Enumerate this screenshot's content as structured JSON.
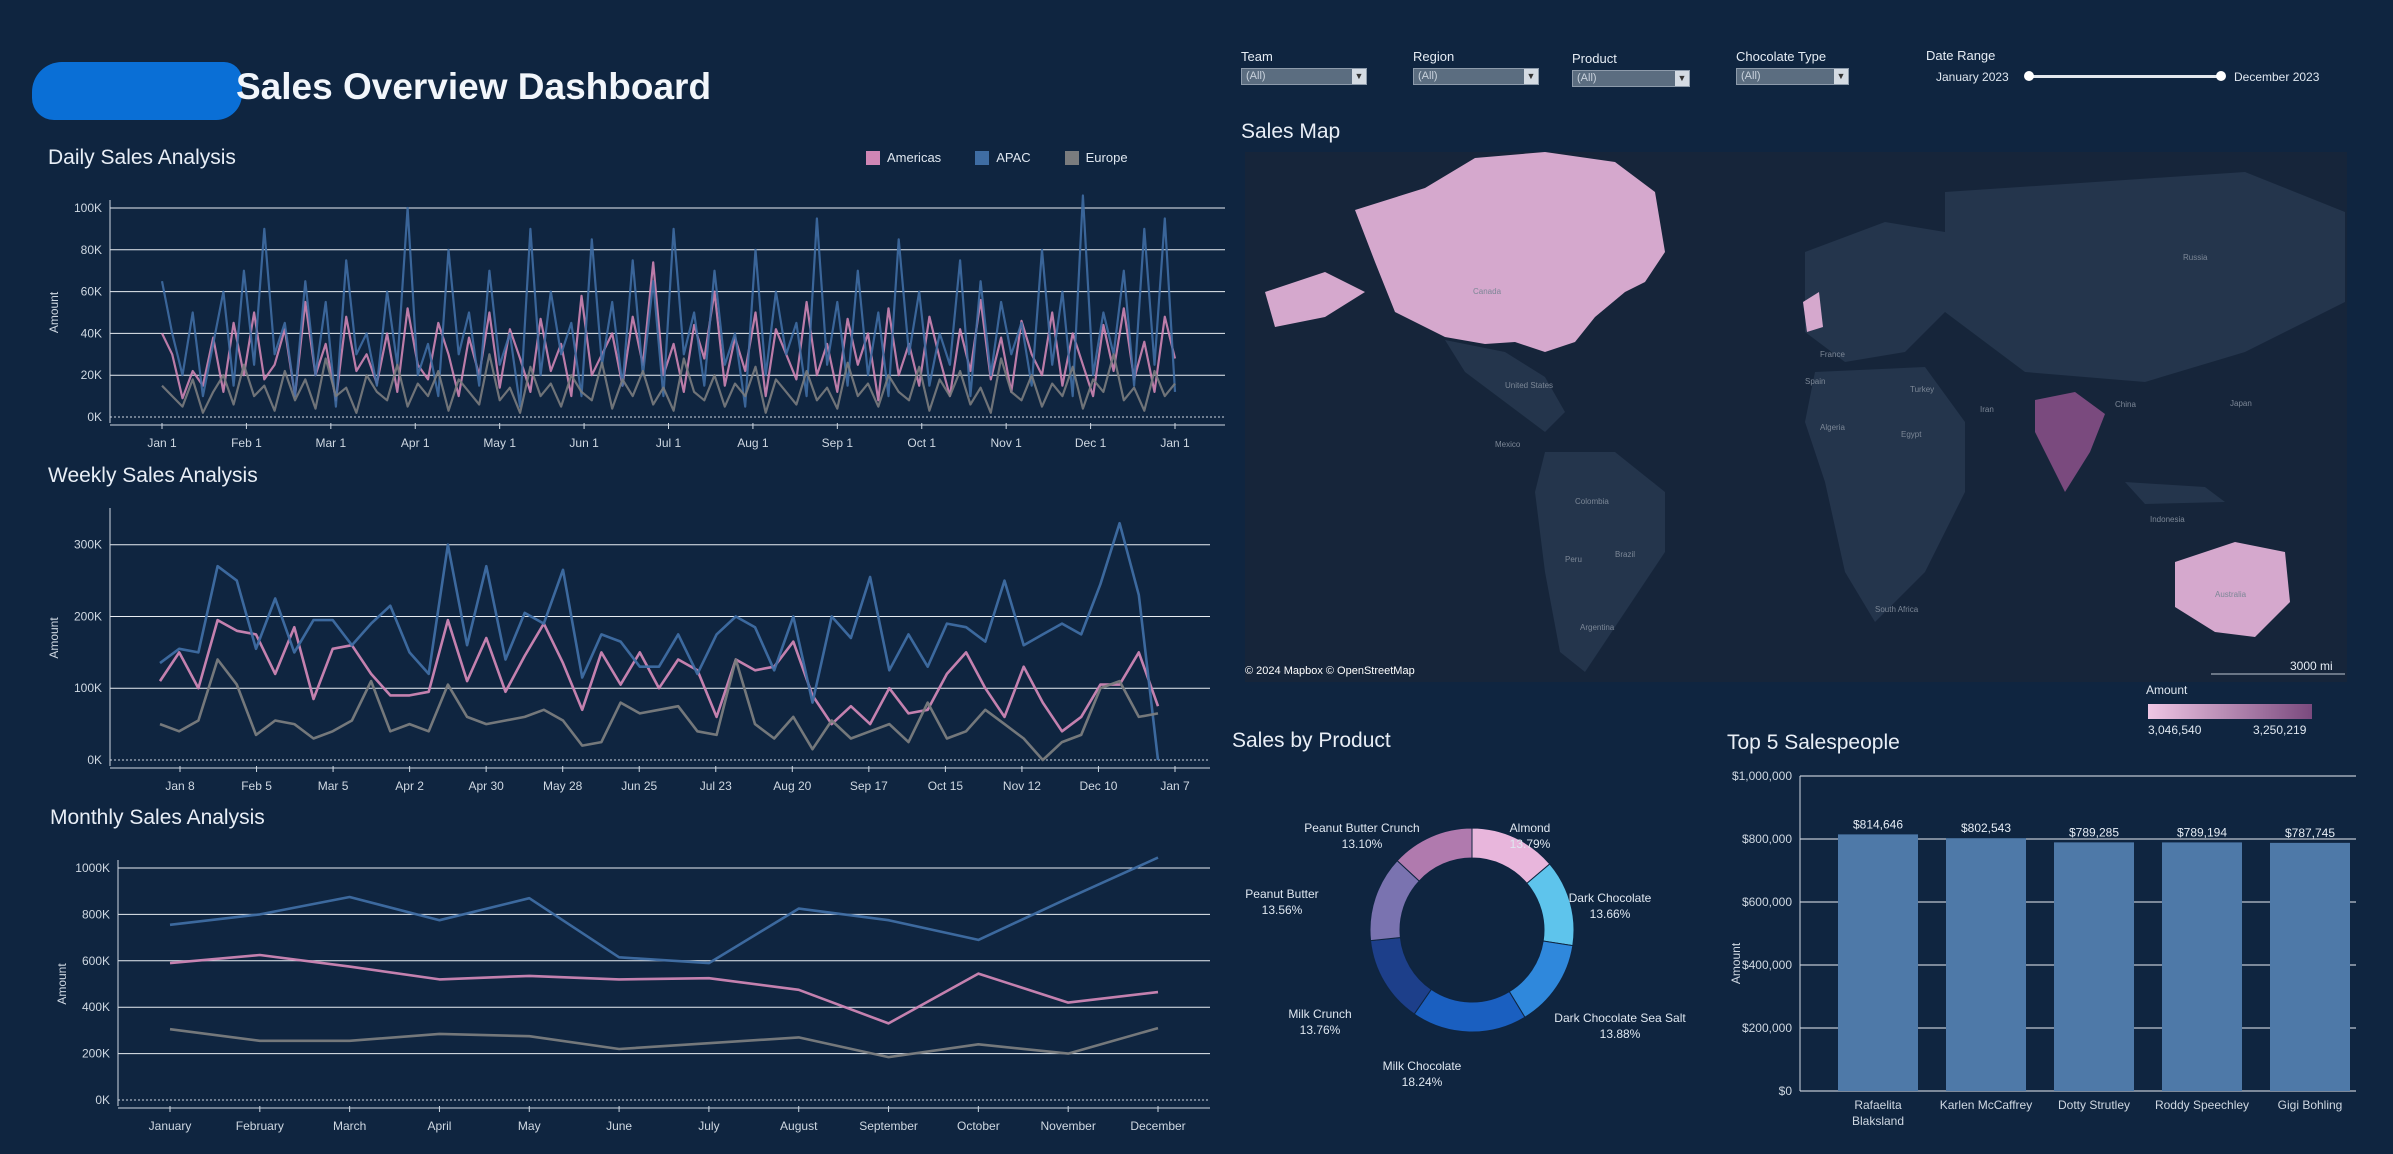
{
  "header": {
    "title": "Sales Overview Dashboard"
  },
  "colors": {
    "background": "#0f2540",
    "americas": "#cf86b5",
    "apac": "#3f6da3",
    "europe": "#7a7c7e",
    "grid": "#ffffff"
  },
  "legend": [
    {
      "label": "Americas",
      "color": "#cf86b5"
    },
    {
      "label": "APAC",
      "color": "#3f6da3"
    },
    {
      "label": "Europe",
      "color": "#7a7c7e"
    }
  ],
  "filters": {
    "team": {
      "label": "Team",
      "value": "(All)"
    },
    "region": {
      "label": "Region",
      "value": "(All)"
    },
    "product": {
      "label": "Product",
      "value": "(All)"
    },
    "chocolate_type": {
      "label": "Chocolate Type",
      "value": "(All)"
    },
    "date_range": {
      "label": "Date Range",
      "start": "January 2023",
      "end": "December 2023"
    }
  },
  "daily": {
    "title": "Daily Sales Analysis",
    "ylabel": "Amount",
    "yticks": [
      "100K",
      "80K",
      "60K",
      "40K",
      "20K",
      "0K"
    ],
    "xticks": [
      "Jan 1",
      "Feb 1",
      "Mar 1",
      "Apr 1",
      "May 1",
      "Jun 1",
      "Jul 1",
      "Aug 1",
      "Sep 1",
      "Oct 1",
      "Nov 1",
      "Dec 1",
      "Jan 1"
    ]
  },
  "weekly": {
    "title": "Weekly Sales Analysis",
    "ylabel": "Amount",
    "yticks": [
      "300K",
      "200K",
      "100K",
      "0K"
    ],
    "xticks": [
      "Jan 8",
      "Feb 5",
      "Mar 5",
      "Apr 2",
      "Apr 30",
      "May 28",
      "Jun 25",
      "Jul 23",
      "Aug 20",
      "Sep 17",
      "Oct 15",
      "Nov 12",
      "Dec 10",
      "Jan 7"
    ]
  },
  "monthly": {
    "title": "Monthly Sales Analysis",
    "ylabel": "Amount",
    "yticks": [
      "1000K",
      "800K",
      "600K",
      "400K",
      "200K",
      "0K"
    ],
    "xticks": [
      "January",
      "February",
      "March",
      "April",
      "May",
      "June",
      "July",
      "August",
      "September",
      "October",
      "November",
      "December"
    ]
  },
  "map": {
    "title": "Sales Map",
    "attribution": "© 2024 Mapbox © OpenStreetMap",
    "scale": "3000 mi",
    "legend_title": "Amount",
    "legend_min": "3,046,540",
    "legend_max": "3,250,219",
    "labels": [
      "Russia",
      "Canada",
      "United States",
      "Mexico",
      "Colombia",
      "Brazil",
      "Peru",
      "Argentina",
      "France",
      "Spain",
      "Algeria",
      "Turkey",
      "Egypt",
      "Iran",
      "China",
      "Japan",
      "Indonesia",
      "South Africa",
      "Australia"
    ]
  },
  "product": {
    "title": "Sales by Product",
    "labels": [
      {
        "name": "Almond",
        "pct": "13.79%"
      },
      {
        "name": "Dark Chocolate",
        "pct": "13.66%"
      },
      {
        "name": "Dark Chocolate Sea Salt",
        "pct": "13.88%"
      },
      {
        "name": "Milk Chocolate",
        "pct": "18.24%"
      },
      {
        "name": "Milk Crunch",
        "pct": "13.76%"
      },
      {
        "name": "Peanut Butter",
        "pct": "13.56%"
      },
      {
        "name": "Peanut Butter Crunch",
        "pct": "13.10%"
      }
    ]
  },
  "top5": {
    "title": "Top 5 Salespeople",
    "ylabel": "Amount",
    "yticks": [
      "$1,000,000",
      "$800,000",
      "$600,000",
      "$400,000",
      "$200,000",
      "$0"
    ],
    "names": [
      "Rafaelita Blaksland",
      "Karlen McCaffrey",
      "Dotty Strutley",
      "Roddy Speechley",
      "Gigi Bohling"
    ],
    "value_labels": [
      "$814,646",
      "$802,543",
      "$789,285",
      "$789,194",
      "$787,745"
    ]
  },
  "chart_data": [
    {
      "type": "line",
      "title": "Daily Sales Analysis",
      "ylabel": "Amount",
      "ylim": [
        0,
        100000
      ],
      "x_range": [
        "2023-01-01",
        "2023-12-31"
      ],
      "series": [
        {
          "name": "Americas",
          "values": [
            40000,
            30000,
            9000,
            22000,
            15000,
            38000,
            12000,
            45000,
            20000,
            50000,
            18000,
            25000,
            42000,
            10000,
            55000,
            20000,
            35000,
            8000,
            48000,
            22000,
            30000,
            16000,
            40000,
            12000,
            52000,
            25000,
            18000,
            45000,
            30000,
            10000,
            38000,
            20000,
            50000,
            14000,
            42000,
            28000,
            12000,
            47000,
            22000,
            35000,
            10000,
            58000,
            20000,
            30000,
            40000,
            15000,
            48000,
            25000,
            74000,
            20000,
            35000,
            12000,
            44000,
            28000,
            60000,
            15000,
            38000,
            22000,
            50000,
            10000,
            42000,
            30000,
            18000,
            55000,
            20000,
            35000,
            12000,
            47000,
            25000,
            40000,
            8000,
            52000,
            20000,
            35000,
            15000,
            48000,
            28000,
            10000,
            42000,
            22000,
            56000,
            18000,
            38000,
            12000,
            46000,
            30000,
            20000,
            50000,
            15000,
            40000,
            25000,
            10000,
            44000,
            22000,
            52000,
            18000,
            36000,
            12000,
            48000,
            28000
          ]
        },
        {
          "name": "APAC",
          "values": [
            65000,
            40000,
            20000,
            50000,
            10000,
            35000,
            60000,
            15000,
            70000,
            25000,
            90000,
            30000,
            45000,
            10000,
            65000,
            20000,
            55000,
            5000,
            75000,
            30000,
            40000,
            15000,
            60000,
            25000,
            100000,
            20000,
            35000,
            10000,
            80000,
            30000,
            50000,
            15000,
            70000,
            25000,
            40000,
            5000,
            90000,
            20000,
            60000,
            30000,
            45000,
            10000,
            85000,
            25000,
            55000,
            15000,
            75000,
            20000,
            65000,
            10000,
            90000,
            30000,
            50000,
            15000,
            70000,
            25000,
            40000,
            5000,
            80000,
            20000,
            60000,
            30000,
            45000,
            10000,
            95000,
            25000,
            55000,
            15000,
            70000,
            20000,
            50000,
            10000,
            85000,
            30000,
            60000,
            15000,
            40000,
            25000,
            75000,
            10000,
            65000,
            20000,
            55000,
            30000,
            45000,
            15000,
            80000,
            25000,
            60000,
            10000,
            106000,
            20000,
            50000,
            30000,
            70000,
            15000,
            90000,
            25000,
            95000,
            12000
          ]
        },
        {
          "name": "Europe",
          "values": [
            15000,
            10000,
            5000,
            18000,
            2000,
            12000,
            20000,
            6000,
            25000,
            10000,
            15000,
            3000,
            22000,
            8000,
            18000,
            4000,
            28000,
            10000,
            14000,
            2000,
            20000,
            12000,
            8000,
            25000,
            5000,
            16000,
            10000,
            22000,
            3000,
            18000,
            12000,
            6000,
            30000,
            8000,
            14000,
            2000,
            24000,
            10000,
            16000,
            5000,
            20000,
            12000,
            8000,
            26000,
            4000,
            18000,
            10000,
            22000,
            6000,
            14000,
            3000,
            28000,
            12000,
            8000,
            20000,
            5000,
            16000,
            10000,
            24000,
            2000,
            18000,
            12000,
            6000,
            22000,
            8000,
            14000,
            4000,
            26000,
            10000,
            16000,
            5000,
            20000,
            12000,
            8000,
            24000,
            3000,
            18000,
            10000,
            22000,
            6000,
            14000,
            2000,
            28000,
            12000,
            8000,
            20000,
            5000,
            16000,
            10000,
            24000,
            4000,
            18000,
            12000,
            30000,
            8000,
            14000,
            3000,
            22000,
            10000,
            16000
          ]
        }
      ]
    },
    {
      "type": "line",
      "title": "Weekly Sales Analysis",
      "ylabel": "Amount",
      "ylim": [
        0,
        340000
      ],
      "x_range": [
        "2023-01-01",
        "2024-01-07"
      ],
      "series": [
        {
          "name": "Americas",
          "values": [
            110000,
            150000,
            100000,
            195000,
            180000,
            175000,
            120000,
            185000,
            85000,
            155000,
            160000,
            120000,
            90000,
            90000,
            95000,
            195000,
            110000,
            170000,
            95000,
            145000,
            190000,
            135000,
            70000,
            150000,
            105000,
            150000,
            100000,
            140000,
            125000,
            60000,
            140000,
            125000,
            130000,
            165000,
            90000,
            50000,
            75000,
            50000,
            100000,
            65000,
            70000,
            120000,
            150000,
            100000,
            60000,
            130000,
            80000,
            40000,
            60000,
            105000,
            105000,
            150000,
            75000
          ]
        },
        {
          "name": "APAC",
          "values": [
            135000,
            155000,
            150000,
            270000,
            250000,
            155000,
            225000,
            150000,
            195000,
            195000,
            160000,
            190000,
            215000,
            150000,
            120000,
            300000,
            160000,
            270000,
            140000,
            205000,
            190000,
            265000,
            115000,
            175000,
            165000,
            130000,
            130000,
            175000,
            120000,
            175000,
            200000,
            185000,
            125000,
            200000,
            80000,
            200000,
            170000,
            255000,
            125000,
            175000,
            130000,
            190000,
            185000,
            165000,
            250000,
            160000,
            175000,
            190000,
            175000,
            245000,
            330000,
            230000,
            0
          ]
        },
        {
          "name": "Europe",
          "values": [
            50000,
            40000,
            55000,
            140000,
            105000,
            35000,
            55000,
            50000,
            30000,
            40000,
            55000,
            110000,
            40000,
            50000,
            40000,
            105000,
            60000,
            50000,
            55000,
            60000,
            70000,
            55000,
            20000,
            25000,
            80000,
            65000,
            70000,
            75000,
            40000,
            35000,
            140000,
            50000,
            30000,
            60000,
            15000,
            55000,
            30000,
            40000,
            50000,
            25000,
            80000,
            30000,
            40000,
            70000,
            50000,
            30000,
            0,
            25000,
            35000,
            100000,
            110000,
            60000,
            65000
          ]
        }
      ]
    },
    {
      "type": "line",
      "title": "Monthly Sales Analysis",
      "ylabel": "Amount",
      "categories": [
        "January",
        "February",
        "March",
        "April",
        "May",
        "June",
        "July",
        "August",
        "September",
        "October",
        "November",
        "December"
      ],
      "ylim": [
        0,
        1000000
      ],
      "series": [
        {
          "name": "Americas",
          "values": [
            590000,
            625000,
            575000,
            520000,
            535000,
            520000,
            525000,
            475000,
            330000,
            545000,
            420000,
            465000
          ]
        },
        {
          "name": "APAC",
          "values": [
            755000,
            800000,
            875000,
            775000,
            870000,
            615000,
            590000,
            825000,
            775000,
            690000,
            870000,
            1045000
          ]
        },
        {
          "name": "Europe",
          "values": [
            305000,
            255000,
            255000,
            285000,
            275000,
            220000,
            245000,
            270000,
            185000,
            240000,
            200000,
            310000
          ]
        }
      ]
    },
    {
      "type": "pie",
      "title": "Sales by Product",
      "categories": [
        "Almond",
        "Dark Chocolate",
        "Dark Chocolate Sea Salt",
        "Milk Chocolate",
        "Milk Crunch",
        "Peanut Butter",
        "Peanut Butter Crunch"
      ],
      "values": [
        13.79,
        13.66,
        13.88,
        18.24,
        13.76,
        13.56,
        13.1
      ],
      "colors": [
        "#e8b6dc",
        "#5ec4ec",
        "#2f88dc",
        "#1a5fc0",
        "#1d3f8a",
        "#7a73b0",
        "#b07aae"
      ]
    },
    {
      "type": "bar",
      "title": "Top 5 Salespeople",
      "ylabel": "Amount",
      "categories": [
        "Rafaelita Blaksland",
        "Karlen McCaffrey",
        "Dotty Strutley",
        "Roddy Speechley",
        "Gigi Bohling"
      ],
      "values": [
        814646,
        802543,
        789285,
        789194,
        787745
      ],
      "ylim": [
        0,
        1000000
      ]
    }
  ]
}
